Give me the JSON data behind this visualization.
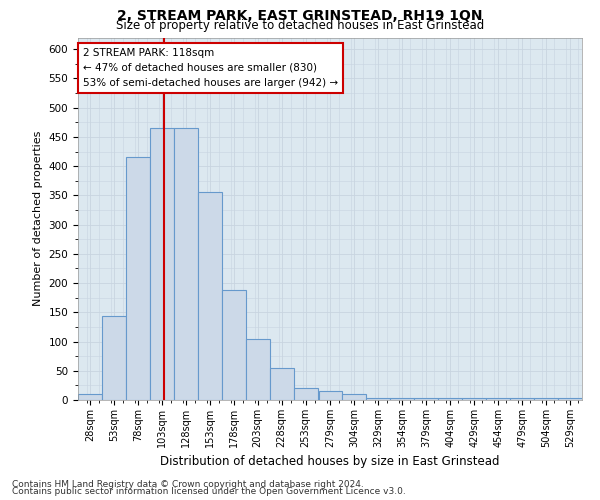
{
  "title": "2, STREAM PARK, EAST GRINSTEAD, RH19 1QN",
  "subtitle": "Size of property relative to detached houses in East Grinstead",
  "xlabel": "Distribution of detached houses by size in East Grinstead",
  "ylabel": "Number of detached properties",
  "footnote1": "Contains HM Land Registry data © Crown copyright and database right 2024.",
  "footnote2": "Contains public sector information licensed under the Open Government Licence v3.0.",
  "annotation_line1": "2 STREAM PARK: 118sqm",
  "annotation_line2": "← 47% of detached houses are smaller (830)",
  "annotation_line3": "53% of semi-detached houses are larger (942) →",
  "bar_color": "#ccd9e8",
  "bar_edge_color": "#6699cc",
  "grid_color": "#c8d4e0",
  "bg_color": "#dce8f0",
  "red_line_color": "#cc0000",
  "red_line_x": 118,
  "bin_edges": [
    28,
    53,
    78,
    103,
    128,
    153,
    178,
    203,
    228,
    253,
    279,
    304,
    329,
    354,
    379,
    404,
    429,
    454,
    479,
    504,
    529,
    554
  ],
  "bar_heights": [
    10,
    143,
    415,
    465,
    465,
    355,
    188,
    105,
    55,
    20,
    15,
    10,
    4,
    4,
    4,
    4,
    4,
    4,
    4,
    4,
    3
  ],
  "ylim": [
    0,
    620
  ],
  "yticks": [
    0,
    50,
    100,
    150,
    200,
    250,
    300,
    350,
    400,
    450,
    500,
    550,
    600
  ],
  "xtick_labels": [
    "28sqm",
    "53sqm",
    "78sqm",
    "103sqm",
    "128sqm",
    "153sqm",
    "178sqm",
    "203sqm",
    "228sqm",
    "253sqm",
    "279sqm",
    "304sqm",
    "329sqm",
    "354sqm",
    "379sqm",
    "404sqm",
    "429sqm",
    "454sqm",
    "479sqm",
    "504sqm",
    "529sqm"
  ]
}
